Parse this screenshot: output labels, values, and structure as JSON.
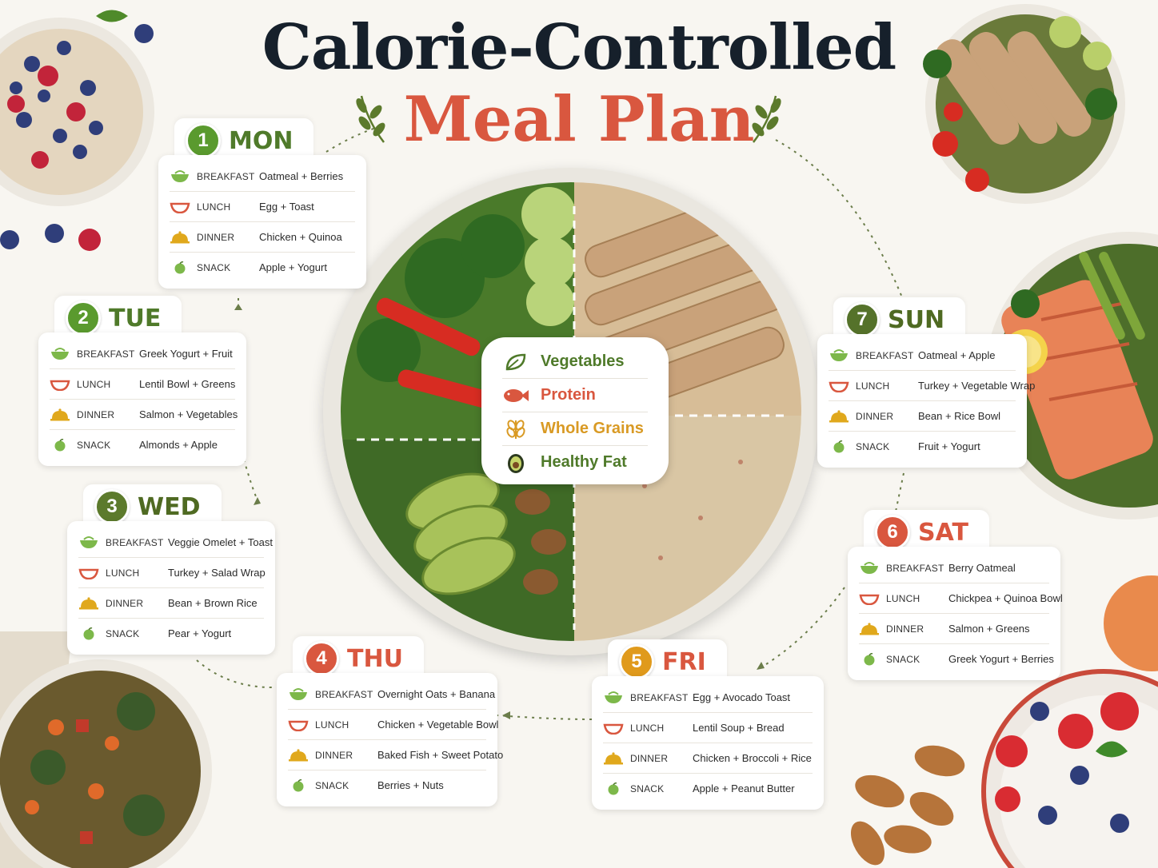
{
  "title": {
    "line1": "Calorie-Controlled",
    "line2": "Meal Plan"
  },
  "legend": [
    {
      "label": "Vegetables",
      "icon": "leaf-icon",
      "color": "#4f7a2a"
    },
    {
      "label": "Protein",
      "icon": "fish-icon",
      "color": "#d9573f"
    },
    {
      "label": "Whole Grains",
      "icon": "wheat-icon",
      "color": "#d99a24"
    },
    {
      "label": "Healthy Fat",
      "icon": "avocado-icon",
      "color": "#4f7a2a"
    }
  ],
  "meal_labels": {
    "breakfast": "BREAKFAST",
    "lunch": "LUNCH",
    "dinner": "DINNER",
    "snack": "SNACK"
  },
  "days": [
    {
      "num": "1",
      "name": "MON",
      "color": "#5a9a2e",
      "breakfast": "Oatmeal + Berries",
      "lunch": "Egg + Toast",
      "dinner": "Chicken + Quinoa",
      "snack": "Apple + Yogurt"
    },
    {
      "num": "2",
      "name": "TUE",
      "color": "#5a9a2e",
      "breakfast": "Greek Yogurt + Fruit",
      "lunch": "Lentil Bowl + Greens",
      "dinner": "Salmon + Vegetables",
      "snack": "Almonds + Apple"
    },
    {
      "num": "3",
      "name": "WED",
      "color": "#5c7a2c",
      "breakfast": "Veggie Omelet + Toast",
      "lunch": "Turkey + Salad Wrap",
      "dinner": "Bean + Brown Rice",
      "snack": "Pear + Yogurt"
    },
    {
      "num": "4",
      "name": "THU",
      "color": "#d9573f",
      "breakfast": "Overnight Oats + Banana",
      "lunch": "Chicken + Vegetable Bowl",
      "dinner": "Baked Fish + Sweet Potato",
      "snack": "Berries + Nuts"
    },
    {
      "num": "5",
      "name": "FRI",
      "color": "#e09a1c",
      "breakfast": "Egg + Avocado Toast",
      "lunch": "Lentil Soup + Bread",
      "dinner": "Chicken + Broccoli + Rice",
      "snack": "Apple + Peanut Butter"
    },
    {
      "num": "6",
      "name": "SAT",
      "color": "#d9573f",
      "breakfast": "Berry Oatmeal",
      "lunch": "Chickpea + Quinoa Bowl",
      "dinner": "Salmon + Greens",
      "snack": "Greek Yogurt + Berries"
    },
    {
      "num": "7",
      "name": "SUN",
      "color": "#55722a",
      "breakfast": "Oatmeal + Apple",
      "lunch": "Turkey + Vegetable Wrap",
      "dinner": "Bean + Rice Bowl",
      "snack": "Fruit + Yogurt"
    }
  ]
}
